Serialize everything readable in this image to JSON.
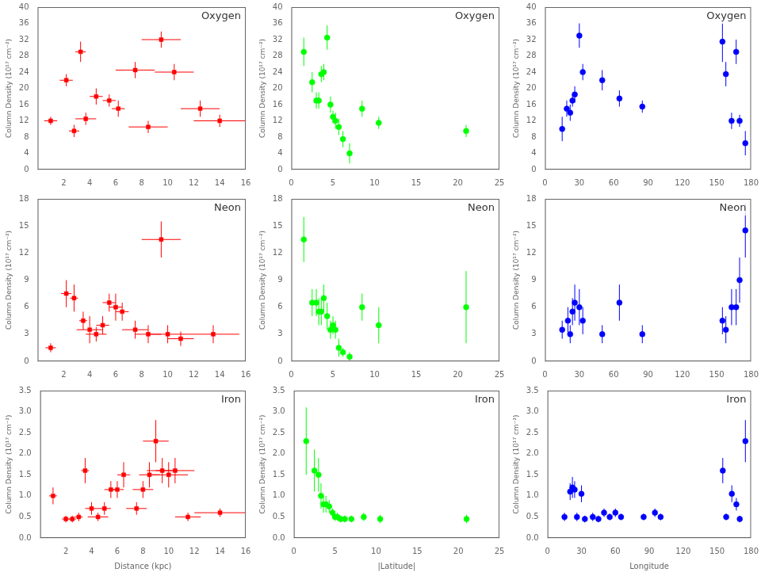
{
  "chart_data": [
    {
      "type": "scatter",
      "annotation": "Oxygen",
      "ylabel": "Column Density (10¹⁷ cm⁻²)",
      "color": "red",
      "marker": "square",
      "grid": false,
      "xlim": [
        0,
        16
      ],
      "xticks": [
        2,
        4,
        6,
        8,
        10,
        12,
        14,
        16
      ],
      "ylim": [
        0,
        40
      ],
      "yticks": [
        0,
        4,
        8,
        12,
        16,
        20,
        24,
        28,
        32,
        36,
        40
      ],
      "x": [
        1.0,
        2.2,
        2.8,
        3.3,
        3.7,
        4.5,
        5.5,
        6.2,
        7.5,
        8.5,
        9.5,
        10.5,
        12.5,
        14.0
      ],
      "values": [
        12.0,
        22.0,
        9.5,
        29.0,
        12.5,
        18.0,
        17.0,
        15.0,
        24.5,
        10.5,
        32.0,
        24.0,
        15.0,
        12.0
      ],
      "xerr": [
        0.5,
        0.5,
        0.4,
        0.4,
        0.8,
        0.5,
        0.5,
        0.5,
        1.5,
        1.5,
        1.5,
        1.5,
        1.5,
        2.0
      ],
      "yerr": [
        1.0,
        1.5,
        1.5,
        2.5,
        1.5,
        2.0,
        1.5,
        2.0,
        2.0,
        1.5,
        2.0,
        2.0,
        2.0,
        1.5
      ]
    },
    {
      "type": "scatter",
      "annotation": "Oxygen",
      "ylabel": "Column Density (10¹⁷ cm⁻²)",
      "color": "#00ff00",
      "marker": "circle",
      "grid": false,
      "xlim": [
        0,
        25
      ],
      "xticks": [
        0,
        5,
        10,
        15,
        20,
        25
      ],
      "ylim": [
        0,
        40
      ],
      "yticks": [
        0,
        4,
        8,
        12,
        16,
        20,
        24,
        28,
        32,
        36,
        40
      ],
      "x": [
        1.5,
        2.5,
        3.0,
        3.3,
        3.6,
        3.9,
        4.3,
        4.7,
        5.0,
        5.3,
        5.7,
        6.2,
        7.0,
        8.5,
        10.5,
        21.0
      ],
      "values": [
        29.0,
        21.5,
        17.0,
        17.0,
        23.5,
        24.0,
        32.5,
        16.0,
        13.0,
        12.0,
        10.5,
        7.5,
        4.0,
        15.0,
        11.5,
        9.5
      ],
      "yerr": [
        3.5,
        2.5,
        2.0,
        2.0,
        2.0,
        2.0,
        3.0,
        2.0,
        1.5,
        2.0,
        2.0,
        2.0,
        2.5,
        2.0,
        1.5,
        1.5
      ]
    },
    {
      "type": "scatter",
      "annotation": "Oxygen",
      "ylabel": "Column Density (10¹⁷ cm⁻²)",
      "color": "blue",
      "marker": "circle",
      "grid": false,
      "xlim": [
        0,
        180
      ],
      "xticks": [
        0,
        30,
        60,
        90,
        120,
        150,
        180
      ],
      "ylim": [
        0,
        40
      ],
      "yticks": [
        0,
        4,
        8,
        12,
        16,
        20,
        24,
        28,
        32,
        36,
        40
      ],
      "x": [
        15.0,
        19.0,
        22.0,
        24.0,
        26.0,
        30.0,
        33.0,
        50.0,
        65.0,
        85.0,
        155.0,
        158.0,
        163.0,
        167.0,
        170.0,
        175.0
      ],
      "values": [
        10.0,
        15.0,
        14.0,
        17.0,
        18.5,
        33.0,
        24.0,
        22.0,
        17.5,
        15.5,
        31.5,
        23.5,
        12.0,
        29.0,
        12.0,
        6.5
      ],
      "yerr": [
        3.0,
        2.0,
        2.0,
        1.5,
        2.0,
        3.0,
        2.0,
        2.5,
        2.0,
        1.5,
        5.0,
        3.0,
        2.0,
        3.0,
        1.5,
        3.0
      ]
    },
    {
      "type": "scatter",
      "annotation": "Neon",
      "ylabel": "Column Density (10¹⁷ cm⁻²)",
      "color": "red",
      "marker": "square",
      "grid": false,
      "xlim": [
        0,
        16
      ],
      "xticks": [
        2,
        4,
        6,
        8,
        10,
        12,
        14,
        16
      ],
      "ylim": [
        0,
        18
      ],
      "yticks": [
        0,
        3,
        6,
        9,
        12,
        15,
        18
      ],
      "x": [
        1.0,
        2.2,
        2.8,
        3.5,
        4.0,
        4.5,
        5.0,
        5.5,
        6.0,
        6.5,
        7.5,
        8.5,
        9.5,
        10.0,
        11.0,
        13.5
      ],
      "values": [
        1.5,
        7.5,
        7.0,
        4.5,
        3.5,
        3.0,
        4.0,
        6.5,
        6.0,
        5.5,
        3.5,
        3.0,
        13.5,
        3.0,
        2.5,
        3.0
      ],
      "xerr": [
        0.4,
        0.4,
        0.3,
        0.3,
        1.0,
        0.8,
        0.5,
        0.5,
        0.5,
        0.5,
        1.0,
        1.0,
        1.5,
        1.5,
        1.0,
        2.0
      ],
      "yerr": [
        0.5,
        1.5,
        1.5,
        1.0,
        1.5,
        0.8,
        1.0,
        1.0,
        1.5,
        1.0,
        1.0,
        1.0,
        2.0,
        1.0,
        0.8,
        1.0
      ]
    },
    {
      "type": "scatter",
      "annotation": "Neon",
      "ylabel": "Column Density (10¹⁷ cm⁻²)",
      "color": "#00ff00",
      "marker": "circle",
      "grid": false,
      "xlim": [
        0,
        25
      ],
      "xticks": [
        0,
        5,
        10,
        15,
        20,
        25
      ],
      "ylim": [
        0,
        18
      ],
      "yticks": [
        0,
        3,
        6,
        9,
        12,
        15,
        18
      ],
      "x": [
        1.5,
        2.5,
        3.0,
        3.3,
        3.6,
        3.9,
        4.3,
        4.7,
        5.0,
        5.3,
        5.7,
        6.2,
        7.0,
        8.5,
        10.5,
        21.0
      ],
      "values": [
        13.5,
        6.5,
        6.5,
        5.5,
        5.5,
        7.0,
        5.0,
        3.5,
        4.0,
        3.5,
        1.5,
        1.0,
        0.5,
        6.0,
        4.0,
        6.0
      ],
      "yerr": [
        2.5,
        1.5,
        1.5,
        1.5,
        1.5,
        1.5,
        1.5,
        1.0,
        1.0,
        1.0,
        1.0,
        0.5,
        0.5,
        1.5,
        2.0,
        4.0
      ]
    },
    {
      "type": "scatter",
      "annotation": "Neon",
      "ylabel": "Column Density (10¹⁷ cm⁻²)",
      "color": "blue",
      "marker": "circle",
      "grid": false,
      "xlim": [
        0,
        180
      ],
      "xticks": [
        0,
        30,
        60,
        90,
        120,
        150,
        180
      ],
      "ylim": [
        0,
        18
      ],
      "yticks": [
        0,
        3,
        6,
        9,
        12,
        15,
        18
      ],
      "x": [
        15.0,
        20.0,
        22.0,
        24.0,
        26.0,
        30.0,
        33.0,
        50.0,
        65.0,
        85.0,
        155.0,
        158.0,
        163.0,
        167.0,
        170.0,
        175.0
      ],
      "values": [
        3.5,
        4.5,
        3.0,
        5.5,
        6.5,
        6.0,
        4.5,
        3.0,
        6.5,
        3.0,
        4.5,
        3.5,
        6.0,
        6.0,
        9.0,
        14.5
      ],
      "yerr": [
        1.0,
        1.5,
        1.0,
        1.5,
        2.0,
        2.0,
        1.5,
        1.0,
        2.0,
        1.0,
        1.5,
        1.5,
        2.0,
        2.0,
        2.5,
        3.0
      ]
    },
    {
      "type": "scatter",
      "annotation": "Iron",
      "ylabel": "Column Density (10¹⁷ cm⁻²)",
      "xlabel": "Distance (kpc)",
      "color": "red",
      "marker": "square",
      "grid": false,
      "xlim": [
        0,
        16
      ],
      "xticks": [
        2,
        4,
        6,
        8,
        10,
        12,
        14,
        16
      ],
      "ylim": [
        0,
        3.5
      ],
      "yticks": [
        {
          "value": 0,
          "label": "0.0"
        },
        0.5,
        {
          "value": 1,
          "label": "1.0"
        },
        1.5,
        {
          "value": 2,
          "label": "2.0"
        },
        2.5,
        {
          "value": 3,
          "label": "3.0"
        },
        3.5
      ],
      "x": [
        1.0,
        2.0,
        2.5,
        3.0,
        3.5,
        4.0,
        4.5,
        5.0,
        5.5,
        6.0,
        6.5,
        7.5,
        8.0,
        8.5,
        9.0,
        9.5,
        10.0,
        10.5,
        11.5,
        14.0
      ],
      "values": [
        1.0,
        0.45,
        0.45,
        0.5,
        1.6,
        0.7,
        0.5,
        0.7,
        1.15,
        1.15,
        1.5,
        0.7,
        1.15,
        1.5,
        2.3,
        1.6,
        1.5,
        1.6,
        0.5,
        0.6
      ],
      "xerr": [
        0.3,
        0.3,
        0.3,
        0.3,
        0.3,
        0.5,
        0.8,
        0.5,
        0.5,
        0.5,
        0.5,
        0.8,
        0.8,
        0.8,
        1.0,
        1.2,
        1.5,
        1.5,
        1.0,
        2.0
      ],
      "yerr": [
        0.2,
        0.08,
        0.08,
        0.1,
        0.3,
        0.15,
        0.1,
        0.15,
        0.2,
        0.2,
        0.3,
        0.15,
        0.2,
        0.3,
        0.5,
        0.3,
        0.3,
        0.3,
        0.1,
        0.1
      ]
    },
    {
      "type": "scatter",
      "annotation": "Iron",
      "ylabel": "Column Density (10¹⁷ cm⁻²)",
      "xlabel": "|Latitude|",
      "color": "#00ff00",
      "marker": "circle",
      "grid": false,
      "xlim": [
        0,
        25
      ],
      "xticks": [
        0,
        5,
        10,
        15,
        20,
        25
      ],
      "ylim": [
        0,
        3.5
      ],
      "yticks": [
        {
          "value": 0,
          "label": "0.0"
        },
        0.5,
        {
          "value": 1,
          "label": "1.0"
        },
        1.5,
        {
          "value": 2,
          "label": "2.0"
        },
        2.5,
        {
          "value": 3,
          "label": "3.0"
        },
        3.5
      ],
      "x": [
        1.5,
        2.5,
        3.0,
        3.3,
        3.6,
        3.9,
        4.3,
        4.7,
        5.0,
        5.3,
        5.7,
        6.2,
        7.0,
        8.5,
        10.5,
        21.0
      ],
      "values": [
        2.3,
        1.6,
        1.5,
        1.0,
        0.8,
        0.8,
        0.75,
        0.6,
        0.5,
        0.5,
        0.45,
        0.45,
        0.45,
        0.5,
        0.45,
        0.45
      ],
      "yerr": [
        0.8,
        0.5,
        0.4,
        0.3,
        0.2,
        0.2,
        0.15,
        0.1,
        0.1,
        0.1,
        0.08,
        0.08,
        0.08,
        0.1,
        0.1,
        0.1
      ]
    },
    {
      "type": "scatter",
      "annotation": "Iron",
      "ylabel": "Column Density (10¹⁷ cm⁻²)",
      "xlabel": "Longitude",
      "color": "blue",
      "marker": "circle",
      "grid": false,
      "xlim": [
        0,
        180
      ],
      "xticks": [
        0,
        30,
        60,
        90,
        120,
        150,
        180
      ],
      "ylim": [
        0,
        3.5
      ],
      "yticks": [
        {
          "value": 0,
          "label": "0.0"
        },
        0.5,
        {
          "value": 1,
          "label": "1.0"
        },
        1.5,
        {
          "value": 2,
          "label": "2.0"
        },
        2.5,
        {
          "value": 3,
          "label": "3.0"
        },
        3.5
      ],
      "x": [
        15.0,
        20.0,
        22.0,
        24.0,
        26.0,
        30.0,
        33.0,
        40.0,
        45.0,
        50.0,
        55.0,
        60.0,
        65.0,
        85.0,
        95.0,
        100.0,
        155.0,
        158.0,
        163.0,
        167.0,
        170.0,
        175.0
      ],
      "values": [
        0.5,
        1.1,
        1.2,
        1.15,
        0.5,
        1.05,
        0.45,
        0.5,
        0.45,
        0.6,
        0.5,
        0.6,
        0.5,
        0.5,
        0.6,
        0.5,
        1.6,
        0.5,
        1.05,
        0.8,
        0.45,
        2.3
      ],
      "yerr": [
        0.1,
        0.2,
        0.25,
        0.2,
        0.1,
        0.2,
        0.08,
        0.1,
        0.08,
        0.1,
        0.08,
        0.1,
        0.08,
        0.08,
        0.1,
        0.08,
        0.3,
        0.08,
        0.2,
        0.15,
        0.08,
        0.5
      ]
    }
  ]
}
